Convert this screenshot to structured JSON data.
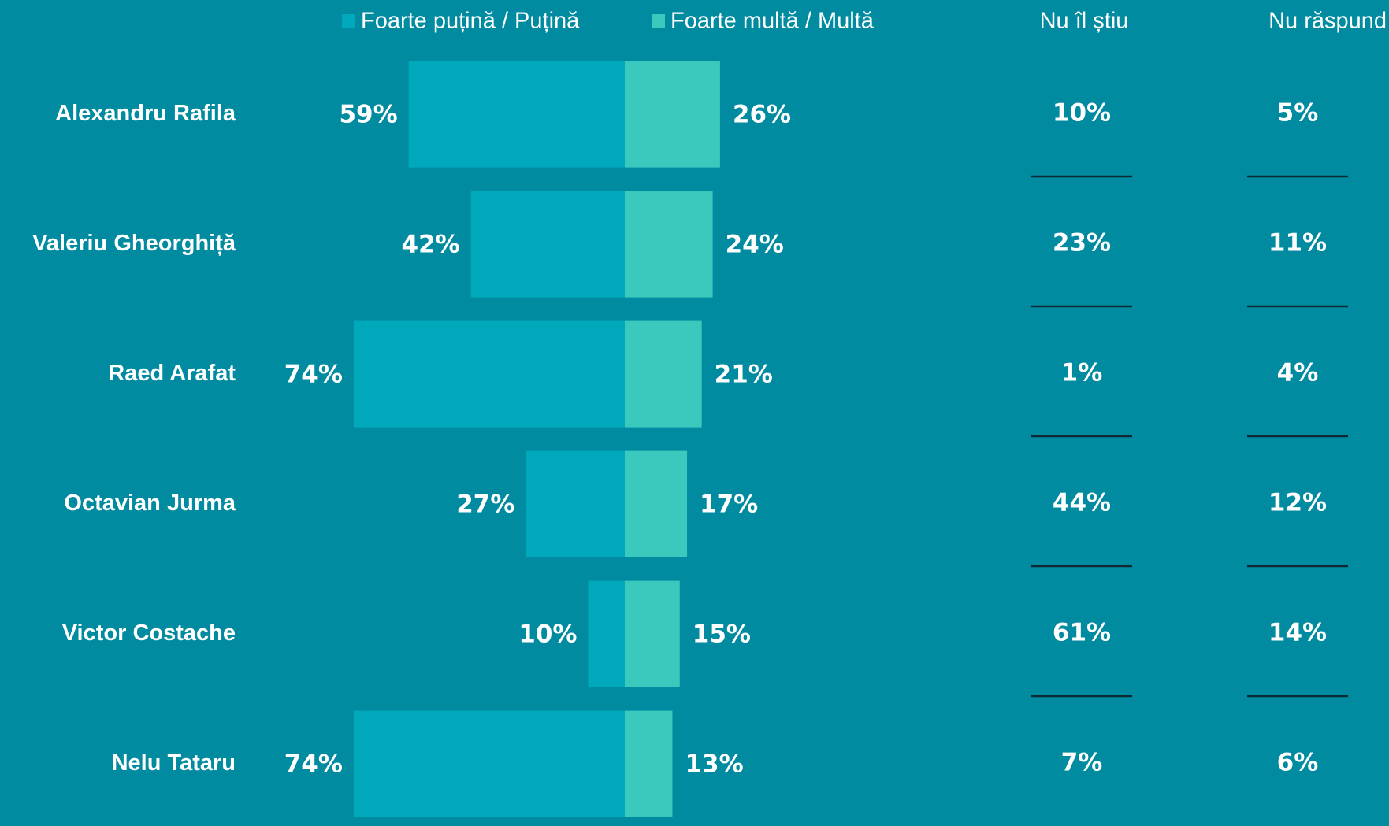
{
  "chart_data": {
    "type": "bar",
    "categories": [
      "Alexandru Rafila",
      "Valeriu Gheorghiță",
      "Raed Arafat",
      "Octavian Jurma",
      "Victor Costache",
      "Nelu Tataru"
    ],
    "series": [
      {
        "name": "Foarte puțină / Puțină",
        "color": "#00a8bc",
        "values": [
          59,
          42,
          74,
          27,
          10,
          74
        ],
        "value_labels": [
          "59%",
          "42%",
          "74%",
          "27%",
          "10%",
          "74%"
        ]
      },
      {
        "name": "Foarte multă / Multă",
        "color": "#3cc9bd",
        "values": [
          26,
          24,
          21,
          17,
          15,
          13
        ],
        "value_labels": [
          "26%",
          "24%",
          "21%",
          "17%",
          "15%",
          "13%"
        ]
      }
    ],
    "columns": [
      {
        "name": "Nu îl știu",
        "values": [
          10,
          23,
          1,
          44,
          61,
          7
        ],
        "value_labels": [
          "10%",
          "23%",
          "1%",
          "44%",
          "61%",
          "7%"
        ]
      },
      {
        "name": "Nu răspund",
        "values": [
          5,
          11,
          4,
          12,
          14,
          6
        ],
        "value_labels": [
          "5%",
          "11%",
          "4%",
          "12%",
          "14%",
          "6%"
        ]
      }
    ]
  }
}
